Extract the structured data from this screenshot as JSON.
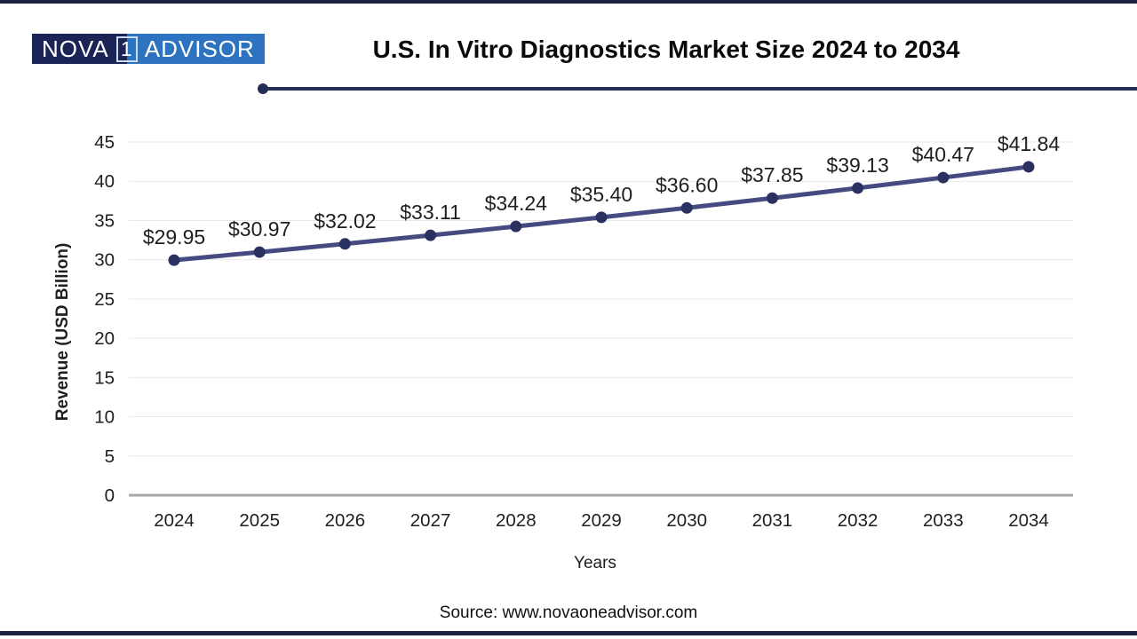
{
  "header": {
    "logo": {
      "nova": "NOVA",
      "one": "1",
      "advisor": "ADVISOR"
    },
    "title": "U.S. In Vitro Diagnostics Market Size 2024 to 2034"
  },
  "chart_data": {
    "type": "line",
    "title": "U.S. In Vitro Diagnostics Market Size 2024 to 2034",
    "categories": [
      "2024",
      "2025",
      "2026",
      "2027",
      "2028",
      "2029",
      "2030",
      "2031",
      "2032",
      "2033",
      "2034"
    ],
    "series": [
      {
        "name": "Revenue",
        "values": [
          29.95,
          30.97,
          32.02,
          33.11,
          34.24,
          35.4,
          36.6,
          37.85,
          39.13,
          40.47,
          41.84
        ],
        "point_labels": [
          "$29.95",
          "$30.97",
          "$32.02",
          "$33.11",
          "$34.24",
          "$35.40",
          "$36.60",
          "$37.85",
          "$39.13",
          "$40.47",
          "$41.84"
        ]
      }
    ],
    "xlabel": "Years",
    "ylabel": "Revenue (USD Billion)",
    "ylim": [
      0,
      45
    ],
    "yticks": [
      0,
      5,
      10,
      15,
      20,
      25,
      30,
      35,
      40,
      45
    ],
    "grid": true,
    "legend": "none",
    "colors": {
      "line": "#454B80",
      "marker": "#2A3160",
      "grid_line": "#E9E9E9",
      "axis_line": "#A8A8A8",
      "tick_text": "#1f1f1f"
    }
  },
  "footer": {
    "source": "Source: www.novaoneadvisor.com"
  },
  "colors": {
    "accent_navy": "#232C54",
    "bar_navy": "#1B2340",
    "logo_dark": "#1C2456",
    "logo_blue": "#2E73BF"
  }
}
